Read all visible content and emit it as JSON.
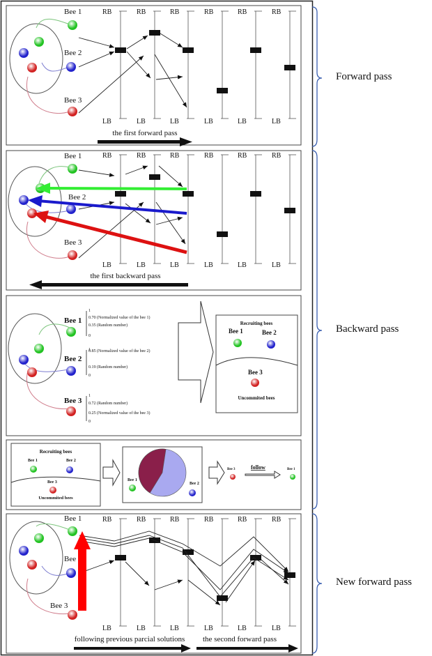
{
  "phases": {
    "forward": "Forward pass",
    "backward": "Backward pass",
    "new_forward": "New forward pass"
  },
  "stage_labels": {
    "rb": "RB",
    "lb": "LB"
  },
  "bees": [
    "Bee 1",
    "Bee 2",
    "Bee 3"
  ],
  "panel1": {
    "caption": "the first forward pass"
  },
  "panel2": {
    "caption": "the first backward pass"
  },
  "panel3": {
    "scale": {
      "top": "1",
      "bottom": "0"
    },
    "bee1": [
      "0.70 (Normalized value of the bee 1)",
      "0.35 (Random number)"
    ],
    "bee2": [
      "0.85 (Normalized value of the bee 2)",
      "0.19 (Random number)"
    ],
    "bee3": [
      "0.72 (Random number)",
      "0.25 (Normalized value of the bee 3)"
    ],
    "recruiting": "Recruiting bees",
    "uncommitted": "Uncommited bees"
  },
  "panel4": {
    "recruiting": "Recruiting bees",
    "uncommitted": "Uncommited bees",
    "follow": "follow",
    "colors": {
      "pie_bee1": "#8a1f4a",
      "pie_bee2": "#a9a9f0"
    }
  },
  "panel5": {
    "caption_left": "following previous parcial solutions",
    "caption_right": "the second forward pass"
  },
  "colors": {
    "green": "#22dd22",
    "blue": "#1a1acc",
    "red": "#dd1111"
  }
}
